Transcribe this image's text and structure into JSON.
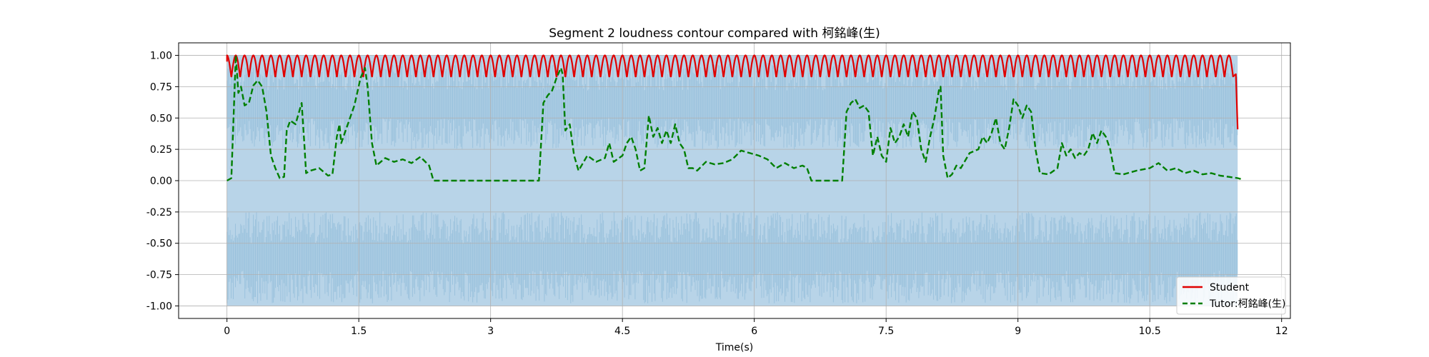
{
  "chart_data": {
    "type": "line",
    "title": "Segment 2 loudness contour compared with 柯銘峰(生)",
    "xlabel": "Time(s)",
    "ylabel": "",
    "xlim": [
      -0.55,
      12.1
    ],
    "ylim": [
      -1.1,
      1.1
    ],
    "xticks": [
      0,
      1.5,
      3,
      4.5,
      6,
      7.5,
      9,
      10.5,
      12
    ],
    "xtick_labels": [
      "0",
      "1.5",
      "3",
      "4.5",
      "6",
      "7.5",
      "9",
      "10.5",
      "12"
    ],
    "yticks": [
      1.0,
      0.75,
      0.5,
      0.25,
      0.0,
      -0.25,
      -0.5,
      -0.75,
      -1.0
    ],
    "ytick_labels": [
      "1.00",
      "0.75",
      "0.50",
      "0.25",
      "0.00",
      "-0.25",
      "-0.50",
      "-0.75",
      "-1.00"
    ],
    "grid": true,
    "legend_position": "bottom-right",
    "waveform": {
      "x_start": 0,
      "x_end": 11.5,
      "fill_color": "#b8d4e8",
      "texture_color": "#8fbbd9",
      "inner_upper": 0.25,
      "inner_lower": -0.25
    },
    "series": [
      {
        "name": "Student",
        "color": "#e00000",
        "style": "solid",
        "x_start": 0,
        "x_end": 11.5,
        "oscillation_period": 0.1,
        "y_max": 1.0,
        "y_min": 0.82,
        "end_value": 0.41
      },
      {
        "name": "Tutor:柯銘峰(生)",
        "color": "#007f00",
        "style": "dashed",
        "points": [
          [
            0,
            0.0
          ],
          [
            0.05,
            0.02
          ],
          [
            0.08,
            0.6
          ],
          [
            0.1,
            1.0
          ],
          [
            0.13,
            0.7
          ],
          [
            0.16,
            0.75
          ],
          [
            0.2,
            0.6
          ],
          [
            0.25,
            0.62
          ],
          [
            0.3,
            0.76
          ],
          [
            0.35,
            0.8
          ],
          [
            0.4,
            0.75
          ],
          [
            0.45,
            0.55
          ],
          [
            0.5,
            0.2
          ],
          [
            0.55,
            0.1
          ],
          [
            0.6,
            0.02
          ],
          [
            0.65,
            0.03
          ],
          [
            0.68,
            0.4
          ],
          [
            0.72,
            0.48
          ],
          [
            0.78,
            0.45
          ],
          [
            0.85,
            0.62
          ],
          [
            0.88,
            0.3
          ],
          [
            0.9,
            0.06
          ],
          [
            0.95,
            0.08
          ],
          [
            1.05,
            0.1
          ],
          [
            1.15,
            0.04
          ],
          [
            1.2,
            0.05
          ],
          [
            1.25,
            0.35
          ],
          [
            1.28,
            0.45
          ],
          [
            1.3,
            0.3
          ],
          [
            1.35,
            0.4
          ],
          [
            1.45,
            0.6
          ],
          [
            1.52,
            0.82
          ],
          [
            1.57,
            0.9
          ],
          [
            1.6,
            0.75
          ],
          [
            1.65,
            0.3
          ],
          [
            1.7,
            0.12
          ],
          [
            1.8,
            0.18
          ],
          [
            1.9,
            0.15
          ],
          [
            2.0,
            0.17
          ],
          [
            2.1,
            0.14
          ],
          [
            2.2,
            0.19
          ],
          [
            2.3,
            0.12
          ],
          [
            2.35,
            0.0
          ],
          [
            2.5,
            0.0
          ],
          [
            2.8,
            0.0
          ],
          [
            3.1,
            0.0
          ],
          [
            3.35,
            0.0
          ],
          [
            3.55,
            0.0
          ],
          [
            3.6,
            0.62
          ],
          [
            3.65,
            0.68
          ],
          [
            3.7,
            0.72
          ],
          [
            3.75,
            0.82
          ],
          [
            3.8,
            0.9
          ],
          [
            3.82,
            0.85
          ],
          [
            3.85,
            0.4
          ],
          [
            3.9,
            0.45
          ],
          [
            3.95,
            0.2
          ],
          [
            4.0,
            0.08
          ],
          [
            4.1,
            0.2
          ],
          [
            4.2,
            0.15
          ],
          [
            4.3,
            0.18
          ],
          [
            4.35,
            0.3
          ],
          [
            4.4,
            0.15
          ],
          [
            4.5,
            0.2
          ],
          [
            4.55,
            0.3
          ],
          [
            4.6,
            0.35
          ],
          [
            4.65,
            0.25
          ],
          [
            4.7,
            0.08
          ],
          [
            4.75,
            0.1
          ],
          [
            4.8,
            0.52
          ],
          [
            4.85,
            0.35
          ],
          [
            4.9,
            0.42
          ],
          [
            4.95,
            0.3
          ],
          [
            5.0,
            0.4
          ],
          [
            5.05,
            0.3
          ],
          [
            5.1,
            0.45
          ],
          [
            5.15,
            0.3
          ],
          [
            5.2,
            0.25
          ],
          [
            5.25,
            0.1
          ],
          [
            5.3,
            0.1
          ],
          [
            5.35,
            0.08
          ],
          [
            5.45,
            0.15
          ],
          [
            5.55,
            0.13
          ],
          [
            5.65,
            0.14
          ],
          [
            5.75,
            0.17
          ],
          [
            5.85,
            0.24
          ],
          [
            5.95,
            0.22
          ],
          [
            6.05,
            0.2
          ],
          [
            6.15,
            0.17
          ],
          [
            6.25,
            0.1
          ],
          [
            6.35,
            0.14
          ],
          [
            6.45,
            0.1
          ],
          [
            6.55,
            0.12
          ],
          [
            6.6,
            0.1
          ],
          [
            6.65,
            0.0
          ],
          [
            6.8,
            0.0
          ],
          [
            7.0,
            0.0
          ],
          [
            7.05,
            0.55
          ],
          [
            7.1,
            0.62
          ],
          [
            7.15,
            0.65
          ],
          [
            7.2,
            0.58
          ],
          [
            7.25,
            0.6
          ],
          [
            7.3,
            0.55
          ],
          [
            7.35,
            0.2
          ],
          [
            7.4,
            0.35
          ],
          [
            7.45,
            0.2
          ],
          [
            7.5,
            0.15
          ],
          [
            7.55,
            0.42
          ],
          [
            7.6,
            0.3
          ],
          [
            7.65,
            0.35
          ],
          [
            7.7,
            0.45
          ],
          [
            7.75,
            0.35
          ],
          [
            7.8,
            0.55
          ],
          [
            7.85,
            0.5
          ],
          [
            7.9,
            0.25
          ],
          [
            7.95,
            0.15
          ],
          [
            8.0,
            0.35
          ],
          [
            8.05,
            0.5
          ],
          [
            8.1,
            0.72
          ],
          [
            8.12,
            0.75
          ],
          [
            8.15,
            0.2
          ],
          [
            8.2,
            0.02
          ],
          [
            8.25,
            0.05
          ],
          [
            8.3,
            0.12
          ],
          [
            8.35,
            0.1
          ],
          [
            8.45,
            0.22
          ],
          [
            8.55,
            0.25
          ],
          [
            8.6,
            0.35
          ],
          [
            8.65,
            0.3
          ],
          [
            8.7,
            0.38
          ],
          [
            8.75,
            0.5
          ],
          [
            8.8,
            0.3
          ],
          [
            8.85,
            0.25
          ],
          [
            8.9,
            0.42
          ],
          [
            8.95,
            0.65
          ],
          [
            9.0,
            0.6
          ],
          [
            9.05,
            0.5
          ],
          [
            9.1,
            0.6
          ],
          [
            9.15,
            0.55
          ],
          [
            9.2,
            0.25
          ],
          [
            9.25,
            0.06
          ],
          [
            9.35,
            0.05
          ],
          [
            9.45,
            0.1
          ],
          [
            9.5,
            0.3
          ],
          [
            9.55,
            0.2
          ],
          [
            9.6,
            0.25
          ],
          [
            9.65,
            0.18
          ],
          [
            9.7,
            0.22
          ],
          [
            9.75,
            0.2
          ],
          [
            9.8,
            0.25
          ],
          [
            9.85,
            0.38
          ],
          [
            9.9,
            0.3
          ],
          [
            9.95,
            0.4
          ],
          [
            10.0,
            0.35
          ],
          [
            10.05,
            0.25
          ],
          [
            10.1,
            0.06
          ],
          [
            10.2,
            0.05
          ],
          [
            10.35,
            0.08
          ],
          [
            10.5,
            0.1
          ],
          [
            10.6,
            0.14
          ],
          [
            10.7,
            0.08
          ],
          [
            10.8,
            0.1
          ],
          [
            10.9,
            0.06
          ],
          [
            11.0,
            0.08
          ],
          [
            11.1,
            0.05
          ],
          [
            11.2,
            0.06
          ],
          [
            11.3,
            0.04
          ],
          [
            11.4,
            0.03
          ],
          [
            11.5,
            0.02
          ],
          [
            11.55,
            0.01
          ]
        ]
      }
    ]
  }
}
